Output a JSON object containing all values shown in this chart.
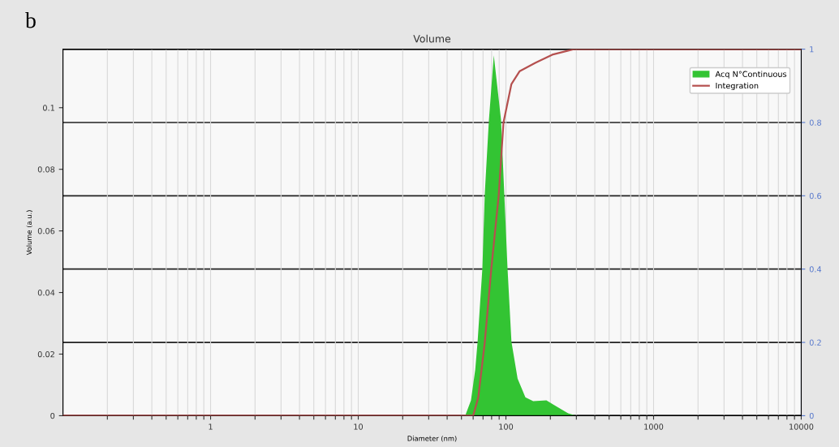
{
  "chart_data": {
    "type": "area",
    "title": "Volume",
    "xlabel": "Diameter (nm)",
    "ylabel": "Volume (a.u.)",
    "annotations": [
      "b"
    ],
    "log": "x",
    "grid": true,
    "legend": "top right",
    "xlim": [
      0.1,
      10000
    ],
    "xticks": [
      {
        "value": 0.2,
        "label": null
      },
      {
        "value": 0.3,
        "label": null
      },
      {
        "value": 0.4,
        "label": null
      },
      {
        "value": 0.5,
        "label": null
      },
      {
        "value": 0.6,
        "label": null
      },
      {
        "value": 0.7,
        "label": null
      },
      {
        "value": 0.8,
        "label": null
      },
      {
        "value": 0.9,
        "label": null
      },
      1,
      {
        "value": 2,
        "label": null
      },
      {
        "value": 3,
        "label": null
      },
      {
        "value": 4,
        "label": null
      },
      {
        "value": 5,
        "label": null
      },
      {
        "value": 6,
        "label": null
      },
      {
        "value": 7,
        "label": null
      },
      {
        "value": 8,
        "label": null
      },
      {
        "value": 9,
        "label": null
      },
      10,
      {
        "value": 20,
        "label": null
      },
      {
        "value": 30,
        "label": null
      },
      {
        "value": 40,
        "label": null
      },
      {
        "value": 50,
        "label": null
      },
      {
        "value": 60,
        "label": null
      },
      {
        "value": 70,
        "label": null
      },
      {
        "value": 80,
        "label": null
      },
      {
        "value": 90,
        "label": null
      },
      100,
      {
        "value": 200,
        "label": null
      },
      {
        "value": 300,
        "label": null
      },
      {
        "value": 400,
        "label": null
      },
      {
        "value": 500,
        "label": null
      },
      {
        "value": 600,
        "label": null
      },
      {
        "value": 700,
        "label": null
      },
      {
        "value": 800,
        "label": null
      },
      {
        "value": 900,
        "label": null
      },
      1000,
      {
        "value": 2000,
        "label": null
      },
      {
        "value": 3000,
        "label": null
      },
      {
        "value": 4000,
        "label": null
      },
      {
        "value": 5000,
        "label": null
      },
      {
        "value": 6000,
        "label": null
      },
      {
        "value": 7000,
        "label": null
      },
      {
        "value": 8000,
        "label": null
      },
      {
        "value": 9000,
        "label": null
      },
      10000
    ],
    "ylim": [
      0,
      0.119
    ],
    "yticks": [
      0,
      0.02,
      0.04,
      0.06,
      0.08,
      0.1
    ],
    "y2lim": [
      0,
      1
    ],
    "y2ticks": [
      0,
      0.2,
      0.4,
      0.6,
      0.8,
      1
    ],
    "series": [
      {
        "name": "Acq N°Continuous",
        "color": "#33c433",
        "x": [
          0.1,
          50,
          53,
          58,
          62,
          64.3,
          69.3,
          71.9,
          76.7,
          82.8,
          92.7,
          97.5,
          102.5,
          109,
          120,
          135.5,
          153,
          188,
          213,
          264,
          300,
          10000
        ],
        "values": [
          0,
          0,
          0,
          0.005,
          0.015,
          0.024,
          0.048,
          0.072,
          0.096,
          0.117,
          0.096,
          0.072,
          0.048,
          0.024,
          0.012,
          0.006,
          0.0047,
          0.005,
          0.0034,
          0.0008,
          0,
          0
        ]
      },
      {
        "name": "Integration",
        "type": "line",
        "axis": "y2",
        "color": "#b5504f",
        "x": [
          0.1,
          60,
          65,
          71.9,
          79.6,
          89.3,
          96.3,
          109,
          124,
          159,
          206,
          288,
          10000
        ],
        "values": [
          0,
          0,
          0.05,
          0.2,
          0.4,
          0.6,
          0.8,
          0.905,
          0.94,
          0.963,
          0.985,
          1,
          1
        ]
      }
    ]
  }
}
